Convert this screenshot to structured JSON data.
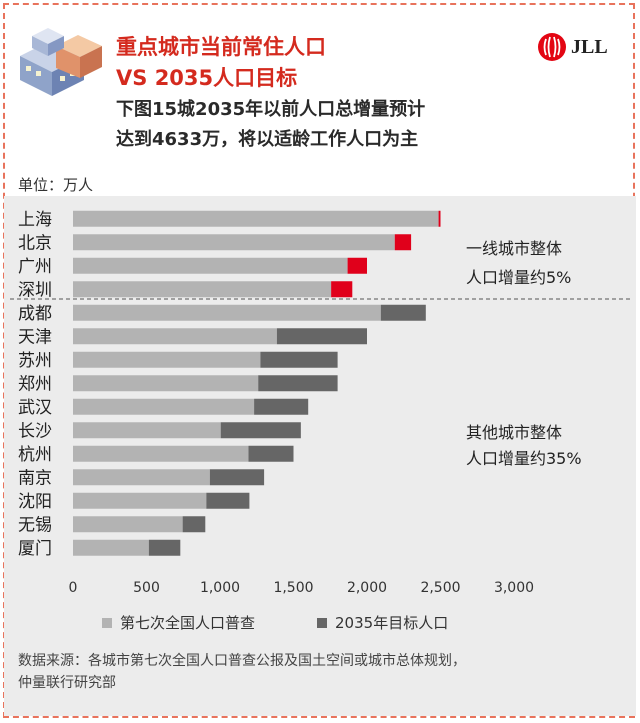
{
  "title_line1": "重点城市当前常住人口",
  "title_line2": "VS 2035人口目标",
  "subtitle_line1": "下图15城2035年以前人口总增量预计",
  "subtitle_line2": "达到4633万，将以适龄工作人口为主",
  "logo_text": "JLL",
  "unit_label": "单位：万人",
  "annotations": {
    "tier1_line1": "一线城市整体",
    "tier1_line2": "人口增量约5%",
    "other_line1": "其他城市整体",
    "other_line2": "人口增量约35%"
  },
  "source_line1": "数据来源：各城市第七次全国人口普查公报及国土空间或城市总体规划，",
  "source_line2": "仲量联行研究部",
  "colors": {
    "census": "#b3b3b3",
    "target_tier1": "#e0001b",
    "target_other": "#666666",
    "title": "#d42a1e"
  },
  "chart_data": {
    "type": "bar",
    "orientation": "horizontal",
    "stacked": true,
    "categories": [
      "上海",
      "北京",
      "广州",
      "深圳",
      "成都",
      "天津",
      "苏州",
      "郑州",
      "武汉",
      "长沙",
      "杭州",
      "南京",
      "沈阳",
      "无锡",
      "厦门"
    ],
    "tier1_count": 4,
    "series": [
      {
        "name": "第七次全国人口普查",
        "values": [
          2487,
          2189,
          1868,
          1756,
          2094,
          1387,
          1275,
          1260,
          1232,
          1005,
          1194,
          931,
          907,
          746,
          516
        ]
      },
      {
        "name": "2035年目标人口",
        "values": [
          13,
          111,
          132,
          144,
          306,
          613,
          525,
          540,
          368,
          545,
          306,
          369,
          293,
          154,
          214
        ]
      }
    ],
    "xlim": [
      0,
      3000
    ],
    "xticks": [
      "0",
      "500",
      "1,000",
      "1,500",
      "2,000",
      "2,500",
      "3,000"
    ],
    "xtick_values": [
      0,
      500,
      1000,
      1500,
      2000,
      2500,
      3000
    ],
    "legend_position": "bottom"
  }
}
